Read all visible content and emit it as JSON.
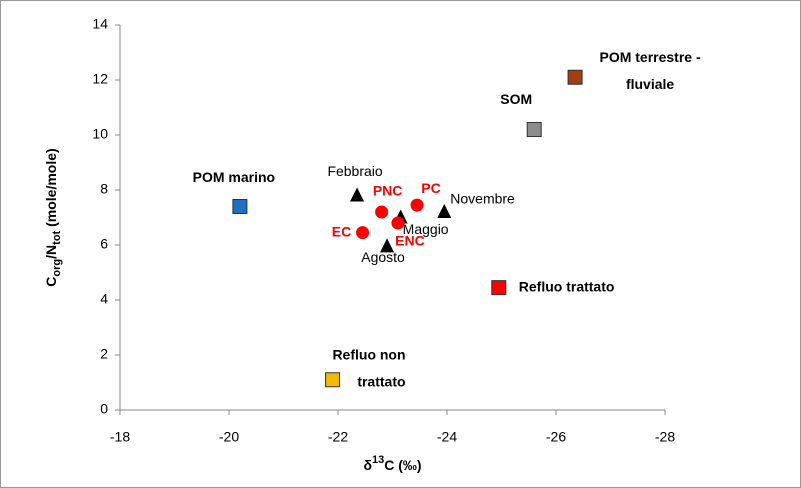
{
  "chart_data": {
    "type": "scatter",
    "xlabel": [
      "δ",
      "13",
      "C (‰)"
    ],
    "ylabel": [
      "C",
      "org",
      "/N",
      "tot",
      " (mole/mole)"
    ],
    "xlim": [
      -18,
      -28
    ],
    "xticks": [
      -18,
      -20,
      -22,
      -24,
      -26,
      -28
    ],
    "ylim": [
      0,
      14
    ],
    "yticks": [
      0,
      2,
      4,
      6,
      8,
      10,
      12,
      14
    ],
    "grid": false,
    "points": [
      {
        "label": [
          "POM marino"
        ],
        "x": -20.2,
        "y": 7.4,
        "marker": "square",
        "color": "#1f6fc5"
      },
      {
        "label": [
          "SOM"
        ],
        "x": -25.6,
        "y": 10.2,
        "marker": "square",
        "color": "#8c8c8c"
      },
      {
        "label": [
          "POM terrestre -",
          "fluviale"
        ],
        "x": -26.35,
        "y": 12.1,
        "marker": "square",
        "color": "#a33d12"
      },
      {
        "label": [
          "Refluo trattato"
        ],
        "x": -24.95,
        "y": 4.45,
        "marker": "square",
        "color": "#ff0000"
      },
      {
        "label": [
          "Refluo non",
          "trattato"
        ],
        "x": -21.9,
        "y": 1.1,
        "marker": "square",
        "color": "#f5b800"
      },
      {
        "label": [
          "Febbraio"
        ],
        "x": -22.35,
        "y": 7.8,
        "marker": "triangle",
        "color": "#000000"
      },
      {
        "label": [
          "Novembre"
        ],
        "x": -23.95,
        "y": 7.2,
        "marker": "triangle",
        "color": "#000000"
      },
      {
        "label": [
          "Maggio"
        ],
        "x": -23.15,
        "y": 7.0,
        "marker": "triangle",
        "color": "#000000"
      },
      {
        "label": [
          "Agosto"
        ],
        "x": -22.9,
        "y": 5.95,
        "marker": "triangle",
        "color": "#000000"
      },
      {
        "label": [
          "PNC"
        ],
        "x": -22.8,
        "y": 7.2,
        "marker": "circle",
        "color": "#ff0000"
      },
      {
        "label": [
          "PC"
        ],
        "x": -23.45,
        "y": 7.45,
        "marker": "circle",
        "color": "#ff0000"
      },
      {
        "label": [
          "ENC"
        ],
        "x": -23.1,
        "y": 6.8,
        "marker": "circle",
        "color": "#ff0000"
      },
      {
        "label": [
          "EC"
        ],
        "x": -22.45,
        "y": 6.45,
        "marker": "circle",
        "color": "#ff0000"
      }
    ]
  }
}
